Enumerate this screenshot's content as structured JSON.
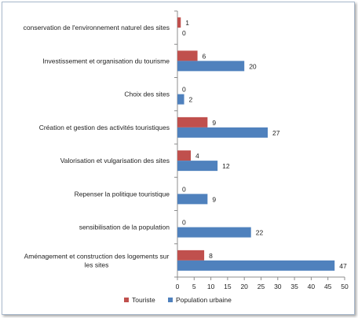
{
  "chart_data": {
    "type": "bar",
    "orientation": "horizontal",
    "categories": [
      "conservation de l'environnement naturel des sites",
      "Investissement et organisation du tourisme",
      "Choix des sites",
      "Création et gestion des activités touristiques",
      "Valorisation et vulgarisation des sites",
      "Repenser la politique touristique",
      "sensibilisation de la population",
      "Aménagement et construction des logements sur les sites"
    ],
    "category_lines": [
      [
        "conservation de l'environnement naturel des sites"
      ],
      [
        "Investissement et organisation du tourisme"
      ],
      [
        "Choix des sites"
      ],
      [
        "Création et gestion des activités touristiques"
      ],
      [
        "Valorisation et vulgarisation des sites"
      ],
      [
        "Repenser la politique touristique"
      ],
      [
        "sensibilisation de la population"
      ],
      [
        "Aménagement et construction des logements sur",
        "les sites"
      ]
    ],
    "series": [
      {
        "name": "Touriste",
        "color": "#c0504d",
        "values": [
          1,
          6,
          0,
          9,
          4,
          0,
          0,
          8
        ]
      },
      {
        "name": "Population urbaine",
        "color": "#4f81bd",
        "values": [
          0,
          20,
          2,
          27,
          12,
          9,
          22,
          47
        ]
      }
    ],
    "xlim": [
      0,
      50
    ],
    "xticks": [
      "0",
      "5",
      "10",
      "15",
      "20",
      "25",
      "30",
      "35",
      "40",
      "45",
      "50"
    ],
    "grid": false,
    "legend_position": "bottom"
  }
}
